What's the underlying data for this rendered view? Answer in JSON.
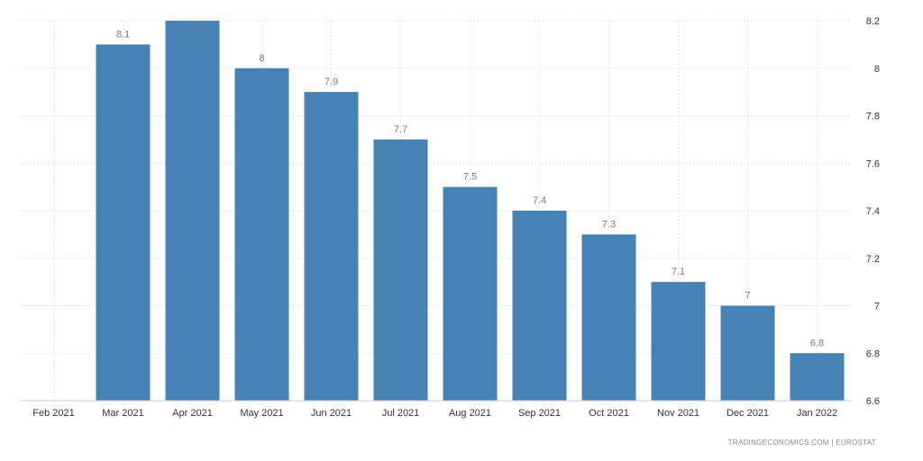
{
  "chart_data": {
    "type": "bar",
    "categories": [
      "Feb 2021",
      "Mar 2021",
      "Apr 2021",
      "May 2021",
      "Jun 2021",
      "Jul 2021",
      "Aug 2021",
      "Sep 2021",
      "Oct 2021",
      "Nov 2021",
      "Dec 2021",
      "Jan 2022"
    ],
    "values": [
      null,
      8.1,
      8.2,
      8,
      7.9,
      7.7,
      7.5,
      7.4,
      7.3,
      7.1,
      7,
      6.8
    ],
    "data_labels": [
      "",
      "8.1",
      "8.2",
      "8",
      "7.9",
      "7.7",
      "7.5",
      "7.4",
      "7.3",
      "7.1",
      "7",
      "6.8"
    ],
    "ylim": [
      6.6,
      8.2
    ],
    "yticks": [
      6.6,
      6.8,
      7,
      7.2,
      7.4,
      7.6,
      7.8,
      8,
      8.2
    ],
    "ytick_labels": [
      "6.6",
      "6.8",
      "7",
      "7.2",
      "7.4",
      "7.6",
      "7.8",
      "8",
      "8.2"
    ],
    "yaxis_side": "right",
    "grid": true,
    "bar_color": "#4682b4",
    "title": "",
    "xlabel": "",
    "ylabel": ""
  },
  "source": "TRADINGECONOMICS.COM  |  EUROSTAT"
}
